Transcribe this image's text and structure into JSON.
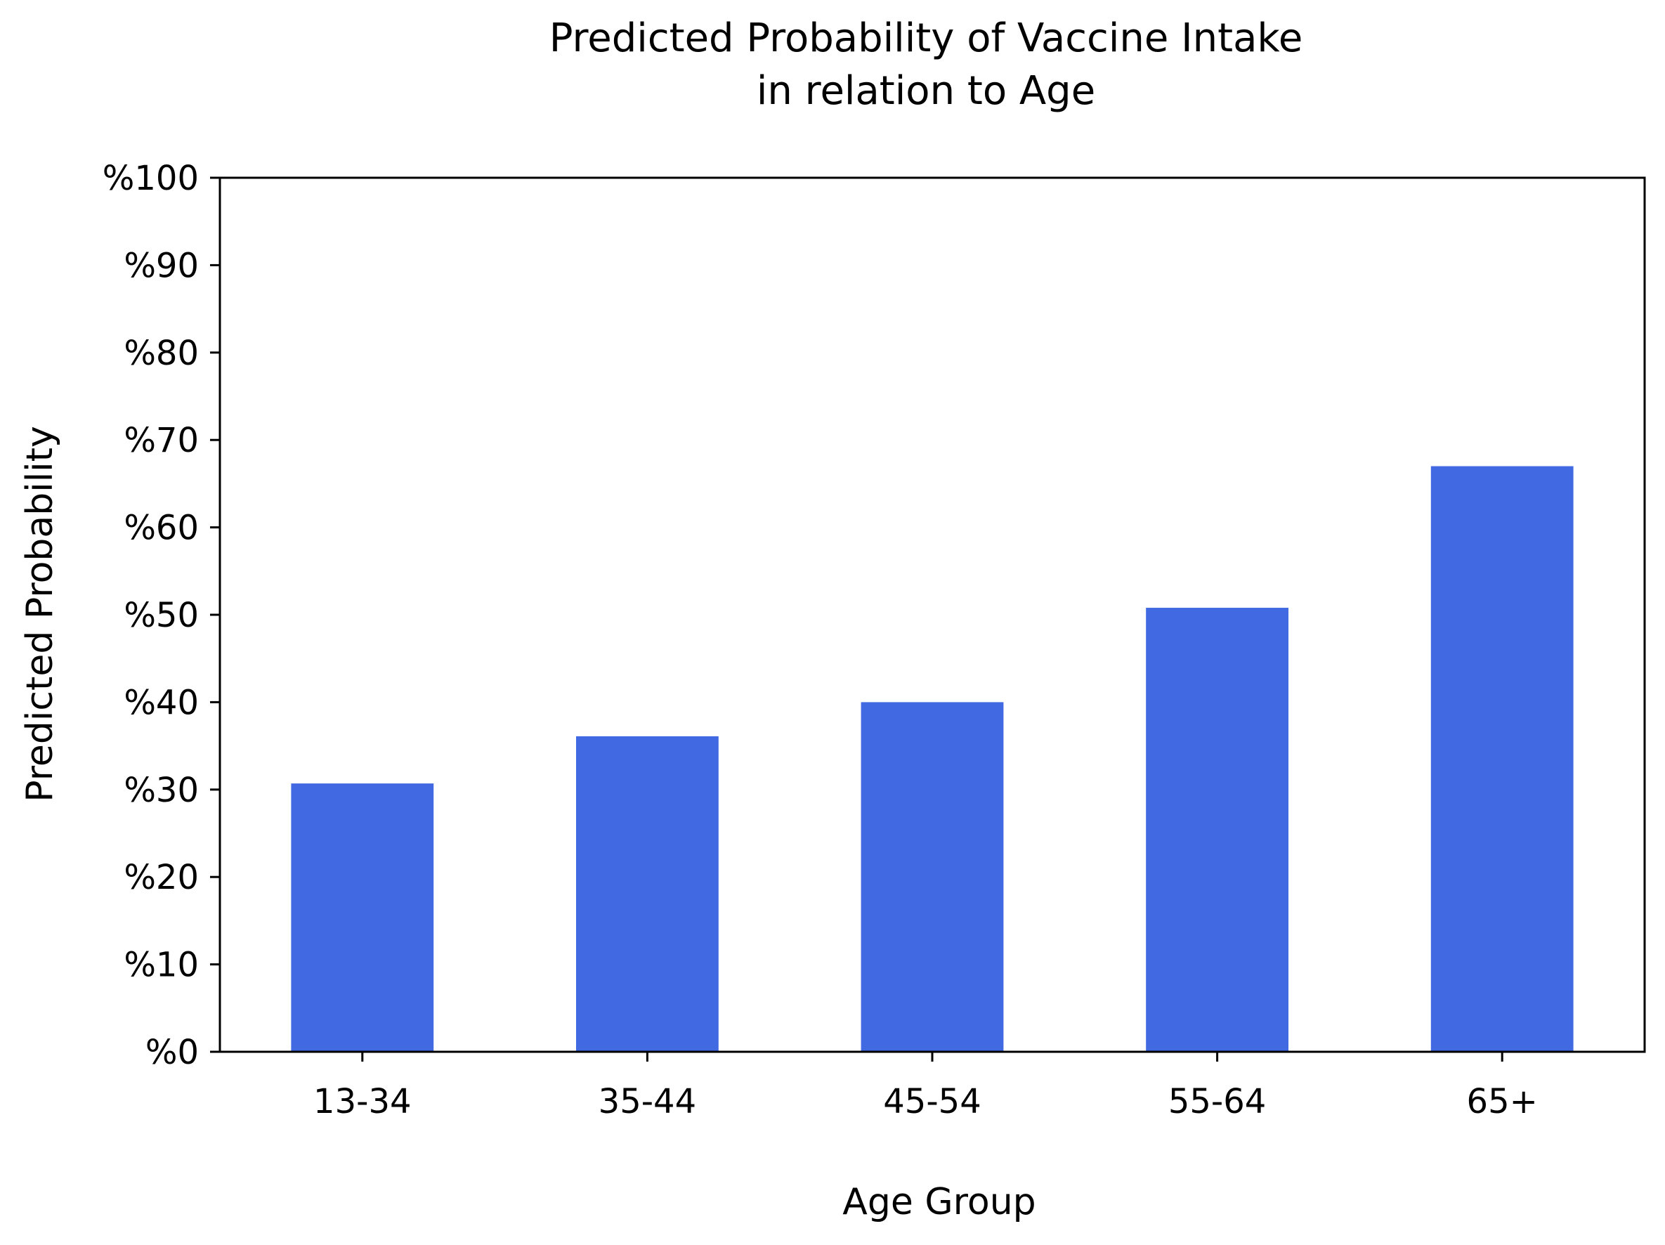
{
  "chart_data": {
    "type": "bar",
    "title": [
      "Predicted Probability of Vaccine Intake",
      "in relation to Age"
    ],
    "xlabel": "Age Group",
    "ylabel": "Predicted Probability",
    "categories": [
      "13-34",
      "35-44",
      "45-54",
      "55-64",
      "65+"
    ],
    "values": [
      30.7,
      36.1,
      40.0,
      50.8,
      67.0
    ],
    "ylim": [
      0,
      100
    ],
    "yticks": [
      0,
      10,
      20,
      30,
      40,
      50,
      60,
      70,
      80,
      90,
      100
    ],
    "ytick_labels": [
      "%0",
      "%10",
      "%20",
      "%30",
      "%40",
      "%50",
      "%60",
      "%70",
      "%80",
      "%90",
      "%100"
    ],
    "grid": false,
    "legend": "none",
    "bar_color": "#4169E1"
  }
}
